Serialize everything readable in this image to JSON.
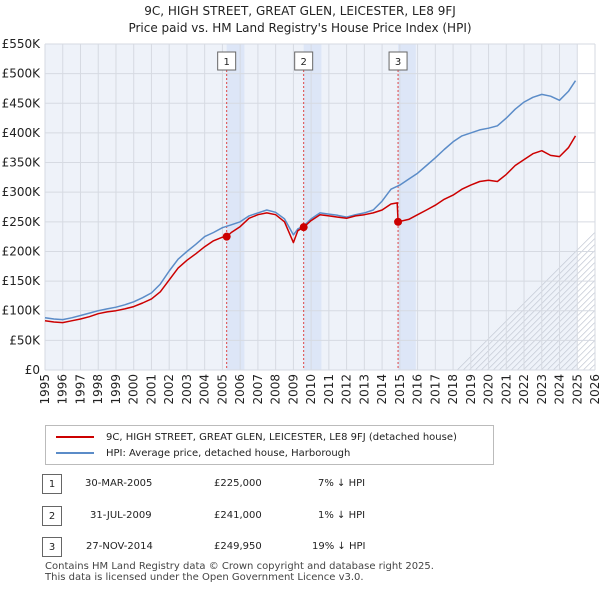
{
  "chart_data": {
    "type": "line",
    "title": "9C, HIGH STREET, GREAT GLEN, LEICESTER, LE8 9FJ",
    "subtitle": "Price paid vs. HM Land Registry's House Price Index (HPI)",
    "y_ticks": [
      "£0",
      "£50K",
      "£100K",
      "£150K",
      "£200K",
      "£250K",
      "£300K",
      "£350K",
      "£400K",
      "£450K",
      "£500K",
      "£550K"
    ],
    "x_ticks": [
      "1995",
      "1996",
      "1997",
      "1998",
      "1999",
      "2000",
      "2001",
      "2002",
      "2003",
      "2004",
      "2005",
      "2006",
      "2007",
      "2008",
      "2009",
      "2010",
      "2011",
      "2012",
      "2013",
      "2014",
      "2015",
      "2016",
      "2017",
      "2018",
      "2019",
      "2020",
      "2021",
      "2022",
      "2023",
      "2024",
      "2025",
      "2026"
    ],
    "xlim": [
      1995,
      2026
    ],
    "ylim": [
      0,
      550000
    ],
    "series": [
      {
        "name": "9C, HIGH STREET, GREAT GLEN, LEICESTER, LE8 9FJ (detached house)",
        "color": "#cc0000",
        "x": [
          1995.0,
          1995.5,
          1996.0,
          1996.5,
          1997.0,
          1997.5,
          1998.0,
          1998.5,
          1999.0,
          1999.5,
          2000.0,
          2000.5,
          2001.0,
          2001.5,
          2002.0,
          2002.5,
          2003.0,
          2003.5,
          2004.0,
          2004.5,
          2005.0,
          2005.24,
          2005.5,
          2006.0,
          2006.5,
          2007.0,
          2007.5,
          2008.0,
          2008.5,
          2009.0,
          2009.25,
          2009.58,
          2010.0,
          2010.5,
          2011.0,
          2011.5,
          2012.0,
          2012.5,
          2013.0,
          2013.5,
          2014.0,
          2014.5,
          2014.85,
          2014.9,
          2015.5,
          2016.0,
          2016.5,
          2017.0,
          2017.5,
          2018.0,
          2018.5,
          2019.0,
          2019.5,
          2020.0,
          2020.5,
          2021.0,
          2021.5,
          2022.0,
          2022.5,
          2023.0,
          2023.5,
          2024.0,
          2024.5,
          2024.9
        ],
        "values": [
          83000,
          81000,
          80000,
          83000,
          86000,
          90000,
          95000,
          98000,
          100000,
          103000,
          107000,
          113000,
          120000,
          132000,
          152000,
          172000,
          185000,
          196000,
          208000,
          218000,
          224000,
          225000,
          232000,
          242000,
          256000,
          262000,
          265000,
          262000,
          250000,
          215000,
          235000,
          241000,
          252000,
          262000,
          260000,
          258000,
          256000,
          260000,
          262000,
          265000,
          270000,
          280000,
          282000,
          249950,
          254000,
          262000,
          270000,
          278000,
          288000,
          295000,
          305000,
          312000,
          318000,
          320000,
          318000,
          330000,
          345000,
          355000,
          365000,
          370000,
          362000,
          360000,
          375000,
          395000
        ]
      },
      {
        "name": "HPI: Average price, detached house, Harborough",
        "color": "#5b8cc8",
        "x": [
          1995.0,
          1995.5,
          1996.0,
          1996.5,
          1997.0,
          1997.5,
          1998.0,
          1998.5,
          1999.0,
          1999.5,
          2000.0,
          2000.5,
          2001.0,
          2001.5,
          2002.0,
          2002.5,
          2003.0,
          2003.5,
          2004.0,
          2004.5,
          2005.0,
          2005.5,
          2006.0,
          2006.5,
          2007.0,
          2007.5,
          2008.0,
          2008.5,
          2009.0,
          2009.25,
          2009.58,
          2010.0,
          2010.5,
          2011.0,
          2011.5,
          2012.0,
          2012.5,
          2013.0,
          2013.5,
          2014.0,
          2014.5,
          2015.0,
          2015.5,
          2016.0,
          2016.5,
          2017.0,
          2017.5,
          2018.0,
          2018.5,
          2019.0,
          2019.5,
          2020.0,
          2020.5,
          2021.0,
          2021.5,
          2022.0,
          2022.5,
          2023.0,
          2023.5,
          2024.0,
          2024.5,
          2024.9
        ],
        "values": [
          88000,
          86000,
          85000,
          88000,
          92000,
          96000,
          100000,
          103000,
          106000,
          110000,
          115000,
          122000,
          130000,
          145000,
          167000,
          187000,
          200000,
          212000,
          225000,
          232000,
          240000,
          245000,
          250000,
          260000,
          265000,
          270000,
          266000,
          255000,
          228000,
          238000,
          243000,
          255000,
          265000,
          263000,
          261000,
          258000,
          262000,
          265000,
          270000,
          285000,
          305000,
          312000,
          322000,
          332000,
          345000,
          358000,
          372000,
          385000,
          395000,
          400000,
          405000,
          408000,
          412000,
          425000,
          440000,
          452000,
          460000,
          465000,
          462000,
          455000,
          470000,
          488000
        ]
      }
    ],
    "sales": [
      {
        "num": "1",
        "x": 2005.24,
        "value": 225000
      },
      {
        "num": "2",
        "x": 2009.58,
        "value": 241000
      },
      {
        "num": "3",
        "x": 2014.9,
        "value": 249950
      }
    ]
  },
  "table": [
    {
      "num": "1",
      "date": "30-MAR-2005",
      "price": "£225,000",
      "hpi": "7% ↓ HPI"
    },
    {
      "num": "2",
      "date": "31-JUL-2009",
      "price": "£241,000",
      "hpi": "1% ↓ HPI"
    },
    {
      "num": "3",
      "date": "27-NOV-2014",
      "price": "£249,950",
      "hpi": "19% ↓ HPI"
    }
  ],
  "footer": {
    "line1": "Contains HM Land Registry data © Crown copyright and database right 2025.",
    "line2": "This data is licensed under the Open Government Licence v3.0."
  },
  "colors": {
    "red": "#cc0000",
    "blue": "#5b8cc8",
    "shade": "#dde6f7",
    "grid": "#d6dae2",
    "plot_bg": "#eef2f9"
  }
}
